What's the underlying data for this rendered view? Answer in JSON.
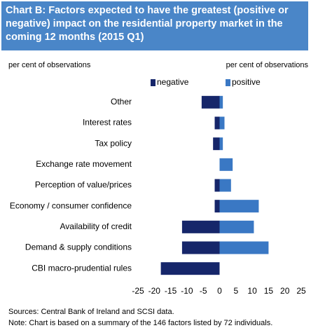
{
  "chart_data": {
    "type": "bar",
    "orientation": "horizontal",
    "title": "Chart B: Factors expected to have the greatest (positive or negative) impact on the residential property market in the coming 12 months (2015 Q1)",
    "left_axis_label": "per cent of observations",
    "right_axis_label": "per cent of observations",
    "categories": [
      "Other",
      "Interest rates",
      "Tax policy",
      "Exchange rate movement",
      "Perception of value/prices",
      "Economy / consumer confidence",
      "Availability of credit",
      "Demand & supply conditions",
      "CBI macro-prudential rules"
    ],
    "series": [
      {
        "name": "negative",
        "color": "#16266a",
        "values": [
          -5.5,
          -1.5,
          -2,
          0,
          -1.5,
          -1.5,
          -11.5,
          -11.5,
          -18
        ]
      },
      {
        "name": "positive",
        "color": "#3a78c4",
        "values": [
          1,
          1.5,
          1,
          4,
          3.5,
          12,
          10.5,
          15,
          0
        ]
      }
    ],
    "xlim": [
      -25,
      25
    ],
    "xticks": [
      -25,
      -20,
      -15,
      -10,
      -5,
      0,
      5,
      10,
      15,
      20,
      25
    ],
    "grid": false,
    "legend": "top",
    "source": "Sources: Central Bank of Ireland and SCSI data.",
    "note": "Note: Chart is based on a summary of the 146 factors listed by 72 individuals."
  }
}
